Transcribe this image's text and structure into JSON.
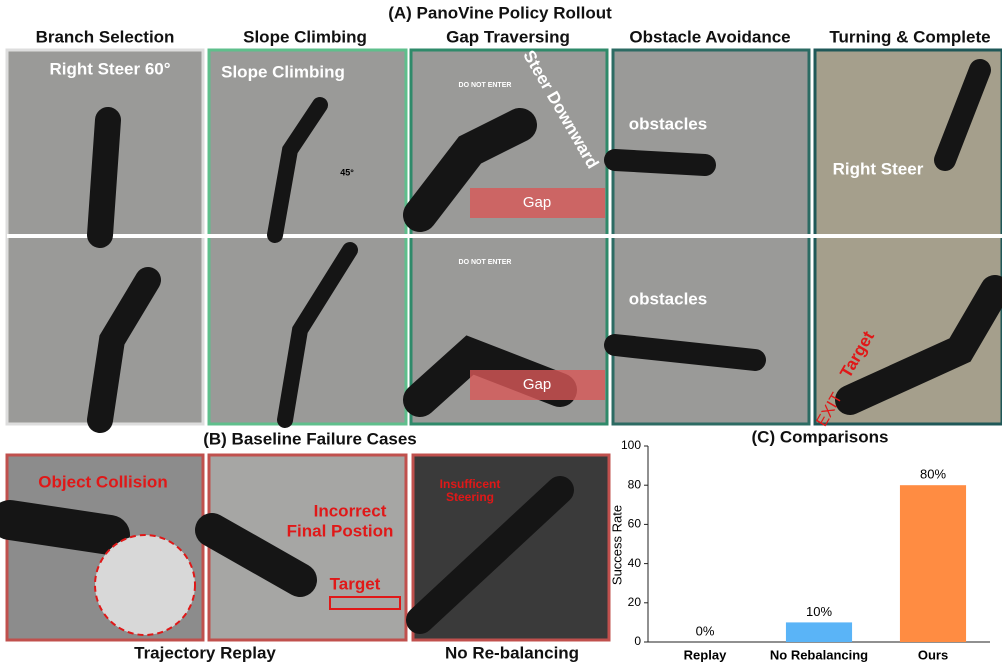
{
  "panel_a": {
    "title": "(A) PanoVine Policy Rollout",
    "columns": [
      {
        "title": "Branch Selection",
        "annotations": [
          "Right Steer 60°"
        ]
      },
      {
        "title": "Slope Climbing",
        "annotations": [
          "Slope Climbing",
          "45°"
        ]
      },
      {
        "title": "Gap Traversing",
        "annotations": [
          "DO NOT ENTER",
          "Steer Downward",
          "Gap",
          "DO NOT ENTER",
          "Gap"
        ]
      },
      {
        "title": "Obstacle Avoidance",
        "annotations": [
          "obstacles",
          "obstacles"
        ]
      },
      {
        "title": "Turning & Complete",
        "annotations": [
          "Right Steer",
          "Target",
          "EXIT"
        ]
      }
    ]
  },
  "panel_b": {
    "title": "(B) Baseline Failure Cases",
    "captions": [
      "Trajectory Replay",
      "No Re-balancing"
    ],
    "annotations": [
      "Object Collision",
      "Incorrect",
      "Final Postion",
      "Target",
      "Insufficent",
      "Steering"
    ]
  },
  "chart_data": {
    "type": "bar",
    "title": "(C) Comparisons",
    "y_label": "Success Rate",
    "categories": [
      "Replay",
      "No Rebalancing",
      "Ours"
    ],
    "values": [
      0,
      10,
      80
    ],
    "value_labels": [
      "0%",
      "10%",
      "80%"
    ],
    "colors": [
      "#5ab4f7",
      "#5ab4f7",
      "#ff8c42"
    ],
    "ylim": [
      0,
      100
    ],
    "yticks": [
      0,
      20,
      40,
      60,
      80,
      100
    ]
  }
}
